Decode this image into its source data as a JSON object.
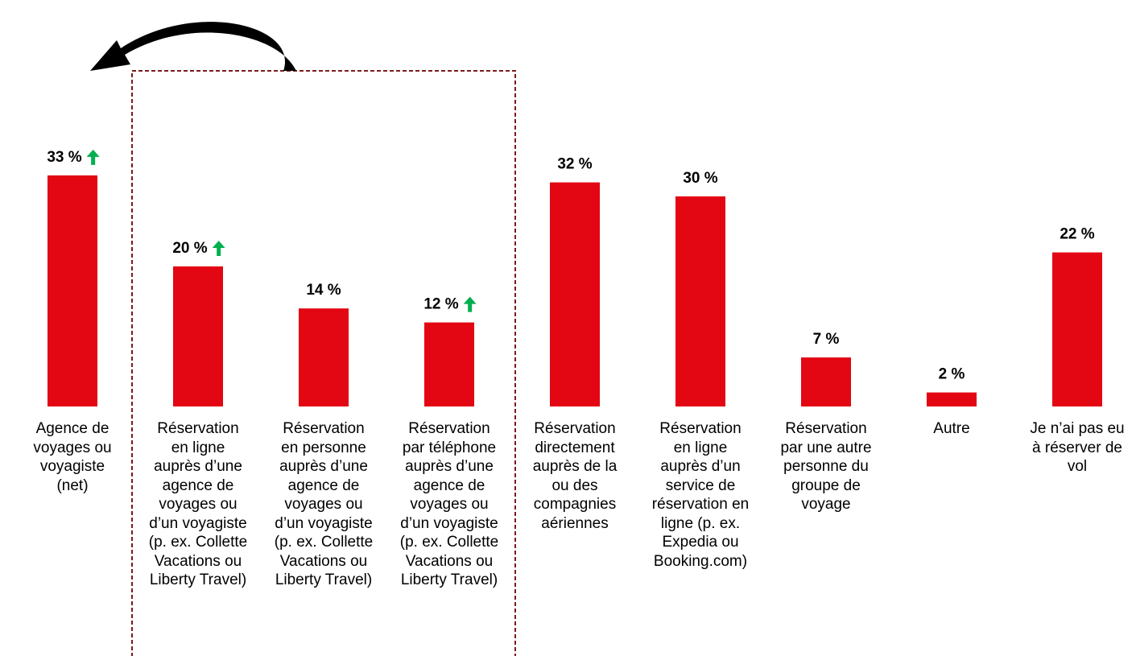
{
  "chart_data": {
    "type": "bar",
    "categories": [
      "Agence de\nvoyages ou\nvoyagiste\n(net)",
      "Réservation\nen ligne\nauprès d’une\nagence de\nvoyages ou\nd’un voyagiste\n(p. ex. Collette\nVacations ou\nLiberty Travel)",
      "Réservation\nen personne\nauprès d’une\nagence de\nvoyages ou\nd’un voyagiste\n(p. ex. Collette\nVacations ou\nLiberty Travel)",
      "Réservation\npar téléphone\nauprès d’une\nagence de\nvoyages ou\nd’un voyagiste\n(p. ex. Collette\nVacations ou\nLiberty Travel)",
      "Réservation\ndirectement\nauprès de la\nou des\ncompagnies\naériennes",
      "Réservation\nen ligne\nauprès d’un\nservice de\nréservation en\nligne (p. ex.\nExpedia ou\nBooking.com)",
      "Réservation\npar une autre\npersonne du\ngroupe de\nvoyage",
      "Autre",
      "Je n’ai pas eu\nà réserver de\nvol"
    ],
    "values": [
      33,
      20,
      14,
      12,
      32,
      30,
      7,
      2,
      22
    ],
    "value_labels": [
      "33 %",
      "20 %",
      "14 %",
      "12 %",
      "32 %",
      "30 %",
      "7 %",
      "2 %",
      "22 %"
    ],
    "increase": [
      true,
      true,
      false,
      true,
      false,
      false,
      false,
      false,
      false
    ],
    "color": "#e30613",
    "increase_color": "#00b050"
  }
}
